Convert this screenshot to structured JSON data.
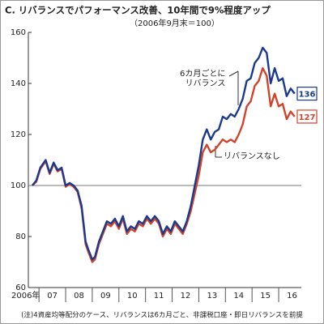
{
  "chart_data": {
    "type": "line",
    "title": "C. リバランスでパフォーマンス改善、10年間で9%程度アップ",
    "subtitle": "（2006年9月末＝100）",
    "note": "(注)4資産均等配分のケース、リバランスは6カ月ごと、非課税口座・即日リバランスを前提",
    "x": [
      2006.75,
      2006.9,
      2007.05,
      2007.25,
      2007.4,
      2007.55,
      2007.7,
      2007.85,
      2008.0,
      2008.15,
      2008.3,
      2008.45,
      2008.6,
      2008.75,
      2008.85,
      2009.0,
      2009.1,
      2009.25,
      2009.4,
      2009.55,
      2009.7,
      2009.85,
      2010.0,
      2010.15,
      2010.3,
      2010.45,
      2010.6,
      2010.75,
      2010.9,
      2011.05,
      2011.2,
      2011.35,
      2011.5,
      2011.65,
      2011.8,
      2011.95,
      2012.1,
      2012.25,
      2012.4,
      2012.55,
      2012.7,
      2012.85,
      2013.0,
      2013.15,
      2013.3,
      2013.45,
      2013.6,
      2013.75,
      2013.9,
      2014.05,
      2014.2,
      2014.35,
      2014.5,
      2014.65,
      2014.8,
      2014.95,
      2015.1,
      2015.25,
      2015.4,
      2015.55,
      2015.7,
      2015.85,
      2016.0,
      2016.15,
      2016.3,
      2016.45,
      2016.6
    ],
    "series": [
      {
        "name": "6カ月ごとに\nリバランス",
        "color": "#1b3a8e",
        "values": [
          100,
          102,
          107,
          110,
          105,
          109,
          106,
          107,
          100,
          101,
          100,
          98,
          92,
          78,
          75,
          71,
          72,
          78,
          82,
          86,
          85,
          87,
          84,
          88,
          82,
          84,
          83,
          86,
          85,
          88,
          86,
          88,
          86,
          81,
          84,
          82,
          86,
          84,
          82,
          86,
          92,
          100,
          108,
          118,
          122,
          118,
          121,
          122,
          127,
          126,
          128,
          127,
          130,
          134,
          141,
          142,
          148,
          150,
          154,
          152,
          140,
          146,
          141,
          142,
          135,
          138,
          136
        ],
        "value_labels": [
          null,
          null,
          null,
          null,
          null,
          null,
          null,
          null,
          null,
          null,
          null,
          null,
          null,
          null,
          null,
          null,
          null,
          null,
          null,
          null,
          null,
          null,
          null,
          null,
          null,
          null,
          null,
          null,
          null,
          null,
          null,
          null,
          null,
          null,
          null,
          null,
          null,
          null,
          null,
          null,
          null,
          null,
          null,
          null,
          null,
          null,
          null,
          null,
          null,
          null,
          null,
          null,
          null,
          null,
          null,
          null,
          null,
          null,
          null,
          null,
          null,
          null,
          null,
          null,
          null,
          null,
          "136"
        ]
      },
      {
        "name": "リバランスなし",
        "color": "#d2432c",
        "values": [
          100,
          101.5,
          106.5,
          109.5,
          104.5,
          108.5,
          105.5,
          106.5,
          99.5,
          100.5,
          99.5,
          97.5,
          91,
          77,
          74,
          70,
          71,
          77,
          81,
          85,
          84,
          86,
          83,
          87,
          81,
          83,
          82,
          85,
          84,
          87,
          85,
          87,
          85,
          80,
          83,
          81,
          85,
          83,
          81,
          85,
          90,
          97,
          104,
          113,
          116,
          113,
          114,
          116,
          118,
          117,
          118,
          117,
          120,
          124,
          131,
          133,
          139,
          141,
          146,
          143,
          131,
          136,
          131,
          132,
          126,
          129,
          127
        ],
        "value_labels": [
          null,
          null,
          null,
          null,
          null,
          null,
          null,
          null,
          null,
          null,
          null,
          null,
          null,
          null,
          null,
          null,
          null,
          null,
          null,
          null,
          null,
          null,
          null,
          null,
          null,
          null,
          null,
          null,
          null,
          null,
          null,
          null,
          null,
          null,
          null,
          null,
          null,
          null,
          null,
          null,
          null,
          null,
          null,
          null,
          null,
          null,
          null,
          null,
          null,
          null,
          null,
          null,
          null,
          null,
          null,
          null,
          null,
          null,
          null,
          null,
          null,
          null,
          null,
          null,
          null,
          null,
          "127"
        ]
      }
    ],
    "xlim": [
      2006.6,
      2016.85
    ],
    "xticks": [
      {
        "value": 2006.5,
        "label": "2006年"
      },
      {
        "value": 2007.5,
        "label": "07"
      },
      {
        "value": 2008.5,
        "label": "08"
      },
      {
        "value": 2009.5,
        "label": "09"
      },
      {
        "value": 2010.5,
        "label": "10"
      },
      {
        "value": 2011.5,
        "label": "11"
      },
      {
        "value": 2012.5,
        "label": "12"
      },
      {
        "value": 2013.5,
        "label": "13"
      },
      {
        "value": 2014.5,
        "label": "14"
      },
      {
        "value": 2015.5,
        "label": "15"
      },
      {
        "value": 2016.5,
        "label": "16"
      }
    ],
    "ylim": [
      60,
      160
    ],
    "yticks": [
      60,
      80,
      100,
      120,
      140,
      160
    ],
    "refline": 100
  }
}
